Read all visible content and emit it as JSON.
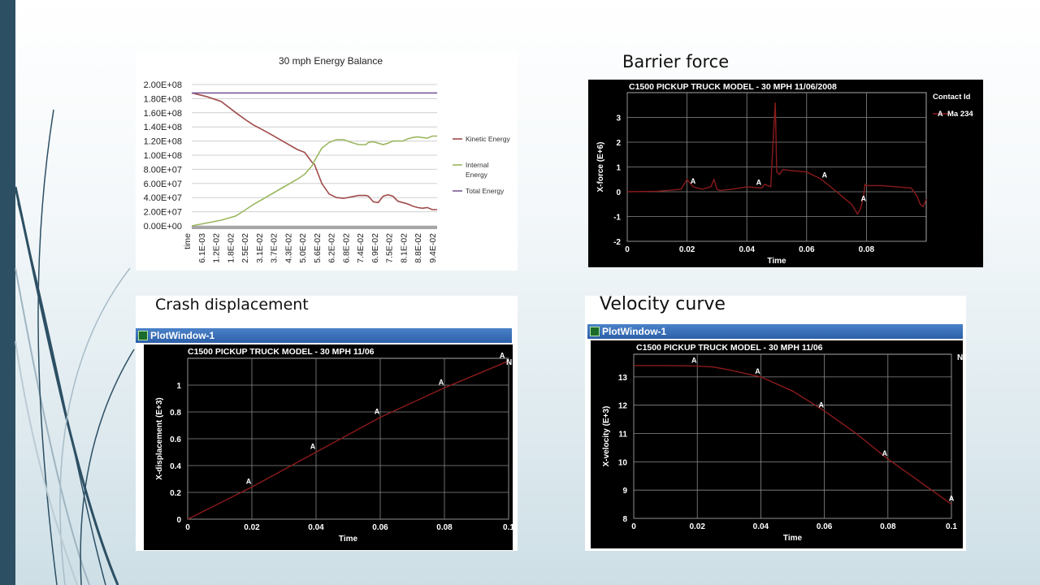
{
  "captions": {
    "barrier": "Barrier force",
    "displacement": "Crash displacement",
    "velocity": "Velocity curve"
  },
  "colors": {
    "kinetic": "#a04a4a",
    "internal": "#9bb860",
    "total": "#7a5a98",
    "curve": "#8b1a1a",
    "sidebar": "#2c4f63"
  },
  "chart_data": [
    {
      "type": "line",
      "title": "30 mph Energy Balance",
      "xlabel": "",
      "ylabel": "",
      "x_first_label": "time",
      "x_tick_labels": [
        "time",
        "6.1E-03",
        "1.2E-02",
        "1.8E-02",
        "2.5E-02",
        "3.1E-02",
        "3.7E-02",
        "4.3E-02",
        "5.0E-02",
        "5.6E-02",
        "6.2E-02",
        "6.8E-02",
        "7.4E-02",
        "6.9E-02",
        "7.5E-02",
        "8.1E-02",
        "8.8E-02",
        "9.4E-02"
      ],
      "y_tick_labels": [
        "0.00E+00",
        "2.00E+07",
        "4.00E+07",
        "6.00E+07",
        "8.00E+07",
        "1.00E+08",
        "1.20E+08",
        "1.40E+08",
        "1.60E+08",
        "1.80E+08",
        "2.00E+08"
      ],
      "ylim": [
        0,
        200000000
      ],
      "x": [
        0,
        0.006,
        0.012,
        0.018,
        0.022,
        0.025,
        0.031,
        0.037,
        0.043,
        0.046,
        0.049,
        0.05,
        0.053,
        0.056,
        0.059,
        0.062,
        0.065,
        0.068,
        0.071,
        0.072,
        0.074,
        0.076,
        0.078,
        0.08,
        0.082,
        0.084,
        0.086,
        0.088,
        0.09,
        0.092,
        0.094,
        0.096,
        0.098,
        0.1
      ],
      "series": [
        {
          "name": "Kinetic Energy",
          "values": [
            188000000,
            183000000,
            176000000,
            160000000,
            150000000,
            143000000,
            132000000,
            120000000,
            108000000,
            104000000,
            90000000,
            87000000,
            60000000,
            45000000,
            40000000,
            39000000,
            41000000,
            43000000,
            43000000,
            42000000,
            34000000,
            33000000,
            42000000,
            44000000,
            42000000,
            35000000,
            33000000,
            31000000,
            28000000,
            26000000,
            25000000,
            26000000,
            23000000,
            23000000
          ]
        },
        {
          "name": "Internal Energy",
          "values": [
            0,
            4000000,
            8000000,
            14000000,
            23000000,
            30000000,
            42000000,
            54000000,
            66000000,
            73000000,
            85000000,
            92000000,
            110000000,
            118000000,
            122000000,
            122000000,
            118000000,
            115000000,
            115000000,
            118000000,
            119000000,
            117000000,
            115000000,
            117000000,
            120000000,
            120000000,
            120000000,
            123000000,
            125000000,
            126000000,
            125000000,
            124000000,
            127000000,
            127000000
          ]
        },
        {
          "name": "Total Energy",
          "values": [
            188000000,
            188000000,
            188000000,
            188000000,
            188000000,
            188000000,
            188000000,
            188000000,
            188000000,
            188000000,
            188000000,
            188000000,
            188000000,
            188000000,
            188000000,
            188000000,
            188000000,
            188000000,
            188000000,
            188000000,
            188000000,
            188000000,
            188000000,
            188000000,
            188000000,
            188000000,
            188000000,
            188000000,
            188000000,
            188000000,
            188000000,
            188000000,
            188000000,
            188000000
          ]
        }
      ],
      "legend_position": "right"
    },
    {
      "type": "line",
      "title": "C1500 PICKUP TRUCK MODEL - 30 MPH 11/06/2008",
      "xlabel": "Time",
      "ylabel": "X-force (E+6)",
      "xlim": [
        0,
        0.1
      ],
      "ylim": [
        -2,
        4
      ],
      "x_ticks": [
        "0",
        "0.02",
        "0.04",
        "0.06",
        "0.08"
      ],
      "y_ticks": [
        "-2",
        "-1",
        "0",
        "1",
        "2",
        "3"
      ],
      "legend_title": "Contact Id",
      "series": [
        {
          "name": "Ma 234",
          "marker": "A",
          "x": [
            0,
            0.01,
            0.018,
            0.02,
            0.022,
            0.025,
            0.028,
            0.029,
            0.03,
            0.031,
            0.035,
            0.04,
            0.045,
            0.046,
            0.048,
            0.049,
            0.0495,
            0.05,
            0.051,
            0.052,
            0.055,
            0.06,
            0.065,
            0.07,
            0.075,
            0.077,
            0.078,
            0.079,
            0.0795,
            0.08,
            0.085,
            0.09,
            0.095,
            0.097,
            0.098,
            0.099,
            0.1
          ],
          "y": [
            0,
            0.02,
            0.1,
            0.5,
            0.2,
            0.1,
            0.2,
            0.5,
            0.1,
            0.05,
            0.1,
            0.2,
            0.15,
            0.3,
            0.2,
            2.5,
            3.6,
            0.8,
            0.7,
            0.9,
            0.85,
            0.8,
            0.5,
            0,
            -0.5,
            -0.9,
            -0.7,
            -0.2,
            0.3,
            0.25,
            0.25,
            0.2,
            0.15,
            -0.2,
            -0.5,
            -0.6,
            -0.3
          ],
          "markers": [
            {
              "x": 0.022,
              "y": 0.2
            },
            {
              "x": 0.044,
              "y": 0.15
            },
            {
              "x": 0.066,
              "y": 0.45
            },
            {
              "x": 0.079,
              "y": -0.5
            }
          ]
        }
      ]
    },
    {
      "type": "line",
      "window_title": "PlotWindow-1",
      "title": "C1500 PICKUP TRUCK MODEL - 30 MPH 11/06",
      "xlabel": "Time",
      "ylabel": "X-displacement (E+3)",
      "xlim": [
        0,
        0.1
      ],
      "ylim": [
        0,
        1.2
      ],
      "x_ticks": [
        "0",
        "0.02",
        "0.04",
        "0.06",
        "0.08",
        "0.1"
      ],
      "y_ticks": [
        "0",
        "0.2",
        "0.4",
        "0.6",
        "0.8",
        "1"
      ],
      "legend_fragment": "N",
      "series": [
        {
          "marker": "A",
          "x": [
            0,
            0.02,
            0.04,
            0.06,
            0.08,
            0.1
          ],
          "y": [
            0,
            0.24,
            0.5,
            0.76,
            0.98,
            1.18
          ],
          "markers": [
            {
              "x": 0.019,
              "y": 0.24
            },
            {
              "x": 0.039,
              "y": 0.5
            },
            {
              "x": 0.059,
              "y": 0.76
            },
            {
              "x": 0.079,
              "y": 0.98
            },
            {
              "x": 0.098,
              "y": 1.18
            }
          ]
        }
      ]
    },
    {
      "type": "line",
      "window_title": "PlotWindow-1",
      "title": "C1500 PICKUP TRUCK MODEL - 30 MPH 11/06",
      "xlabel": "Time",
      "ylabel": "X-velocity (E+3)",
      "xlim": [
        0,
        0.1
      ],
      "ylim": [
        8,
        13.8
      ],
      "x_ticks": [
        "0",
        "0.02",
        "0.04",
        "0.06",
        "0.08",
        "0.1"
      ],
      "y_ticks": [
        "8",
        "9",
        "10",
        "11",
        "12",
        "13"
      ],
      "legend_fragment": "N",
      "series": [
        {
          "marker": "A",
          "x": [
            0,
            0.01,
            0.02,
            0.025,
            0.03,
            0.04,
            0.05,
            0.06,
            0.07,
            0.08,
            0.09,
            0.1
          ],
          "y": [
            13.4,
            13.4,
            13.38,
            13.35,
            13.25,
            13.0,
            12.5,
            11.8,
            11.0,
            10.1,
            9.3,
            8.5
          ],
          "markers": [
            {
              "x": 0.019,
              "y": 13.38
            },
            {
              "x": 0.039,
              "y": 13.0
            },
            {
              "x": 0.059,
              "y": 11.8
            },
            {
              "x": 0.079,
              "y": 10.1
            },
            {
              "x": 0.1,
              "y": 8.5
            }
          ]
        }
      ]
    }
  ]
}
